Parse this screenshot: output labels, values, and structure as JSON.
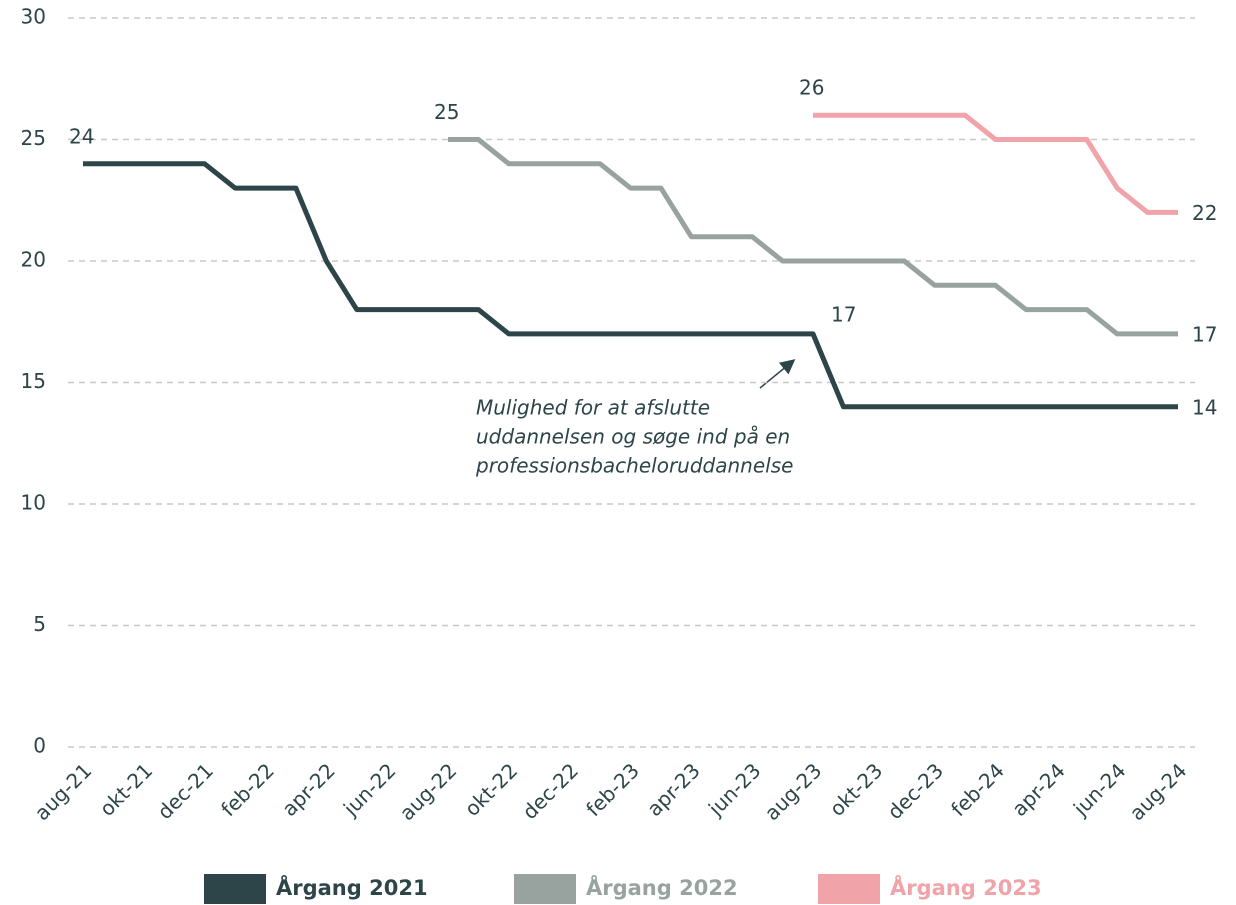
{
  "chart_data": {
    "type": "line",
    "categories": [
      "aug-21",
      null,
      "okt-21",
      null,
      "dec-21",
      null,
      "feb-22",
      null,
      "apr-22",
      null,
      "jun-22",
      null,
      "aug-22",
      null,
      "okt-22",
      null,
      "dec-22",
      null,
      "feb-23",
      null,
      "apr-23",
      null,
      "jun-23",
      null,
      "aug-23",
      null,
      "okt-23",
      null,
      "dec-23",
      null,
      "feb-24",
      null,
      "apr-24",
      null,
      "jun-24",
      null,
      "aug-24"
    ],
    "series": [
      {
        "name": "Årgang 2021",
        "color": "#2d4548",
        "values": [
          24,
          24,
          24,
          24,
          24,
          23,
          23,
          23,
          20,
          18,
          18,
          18,
          18,
          18,
          17,
          17,
          17,
          17,
          17,
          17,
          17,
          17,
          17,
          17,
          17,
          14,
          14,
          14,
          14,
          14,
          14,
          14,
          14,
          14,
          14,
          14,
          14
        ]
      },
      {
        "name": "Årgang 2022",
        "color": "#98a3a0",
        "values": [
          null,
          null,
          null,
          null,
          null,
          null,
          null,
          null,
          null,
          null,
          null,
          null,
          25,
          25,
          24,
          24,
          24,
          24,
          23,
          23,
          21,
          21,
          21,
          20,
          20,
          20,
          20,
          20,
          19,
          19,
          19,
          18,
          18,
          18,
          17,
          17,
          17
        ]
      },
      {
        "name": "Årgang 2023",
        "color": "#f0a3a9",
        "values": [
          null,
          null,
          null,
          null,
          null,
          null,
          null,
          null,
          null,
          null,
          null,
          null,
          null,
          null,
          null,
          null,
          null,
          null,
          null,
          null,
          null,
          null,
          null,
          null,
          26,
          26,
          26,
          26,
          26,
          26,
          25,
          25,
          25,
          25,
          23,
          22,
          22
        ]
      }
    ],
    "annotation": [
      "Mulighed for at afslutte",
      "uddannelsen og søge ind på en",
      "professionsbacheloruddannelse"
    ],
    "ylim": [
      0,
      30
    ],
    "yticks": [
      0,
      5,
      10,
      15,
      20,
      25,
      30
    ],
    "grid": true,
    "legend": "bottom"
  }
}
